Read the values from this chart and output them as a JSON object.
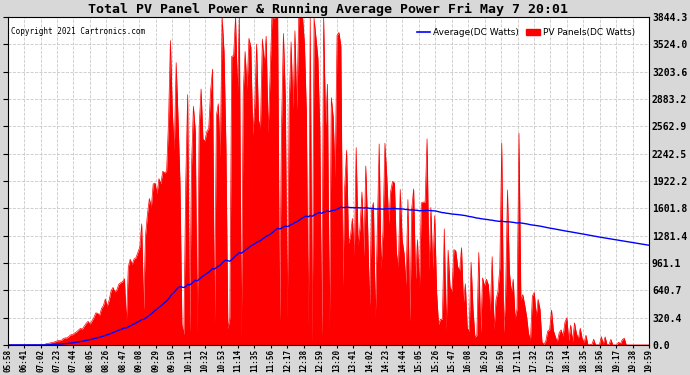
{
  "title": "Total PV Panel Power & Running Average Power Fri May 7 20:01",
  "copyright": "Copyright 2021 Cartronics.com",
  "legend_avg": "Average(DC Watts)",
  "legend_pv": "PV Panels(DC Watts)",
  "yticks": [
    0.0,
    320.4,
    640.7,
    961.1,
    1281.4,
    1601.8,
    1922.2,
    2242.5,
    2562.9,
    2883.2,
    3203.6,
    3524.0,
    3844.3
  ],
  "ymax": 3844.3,
  "ymin": 0.0,
  "avg_color": "#0000ff",
  "pv_color": "#ff0000",
  "grid_color": "#bbbbbb",
  "xtick_labels": [
    "05:58",
    "06:41",
    "07:02",
    "07:23",
    "07:44",
    "08:05",
    "08:26",
    "08:47",
    "09:08",
    "09:29",
    "09:50",
    "10:11",
    "10:32",
    "10:53",
    "11:14",
    "11:35",
    "11:56",
    "12:17",
    "12:38",
    "12:59",
    "13:20",
    "13:41",
    "14:02",
    "14:23",
    "14:44",
    "15:05",
    "15:26",
    "15:47",
    "16:08",
    "16:29",
    "16:50",
    "17:11",
    "17:32",
    "17:53",
    "18:14",
    "18:35",
    "18:56",
    "19:17",
    "19:38",
    "19:59"
  ]
}
